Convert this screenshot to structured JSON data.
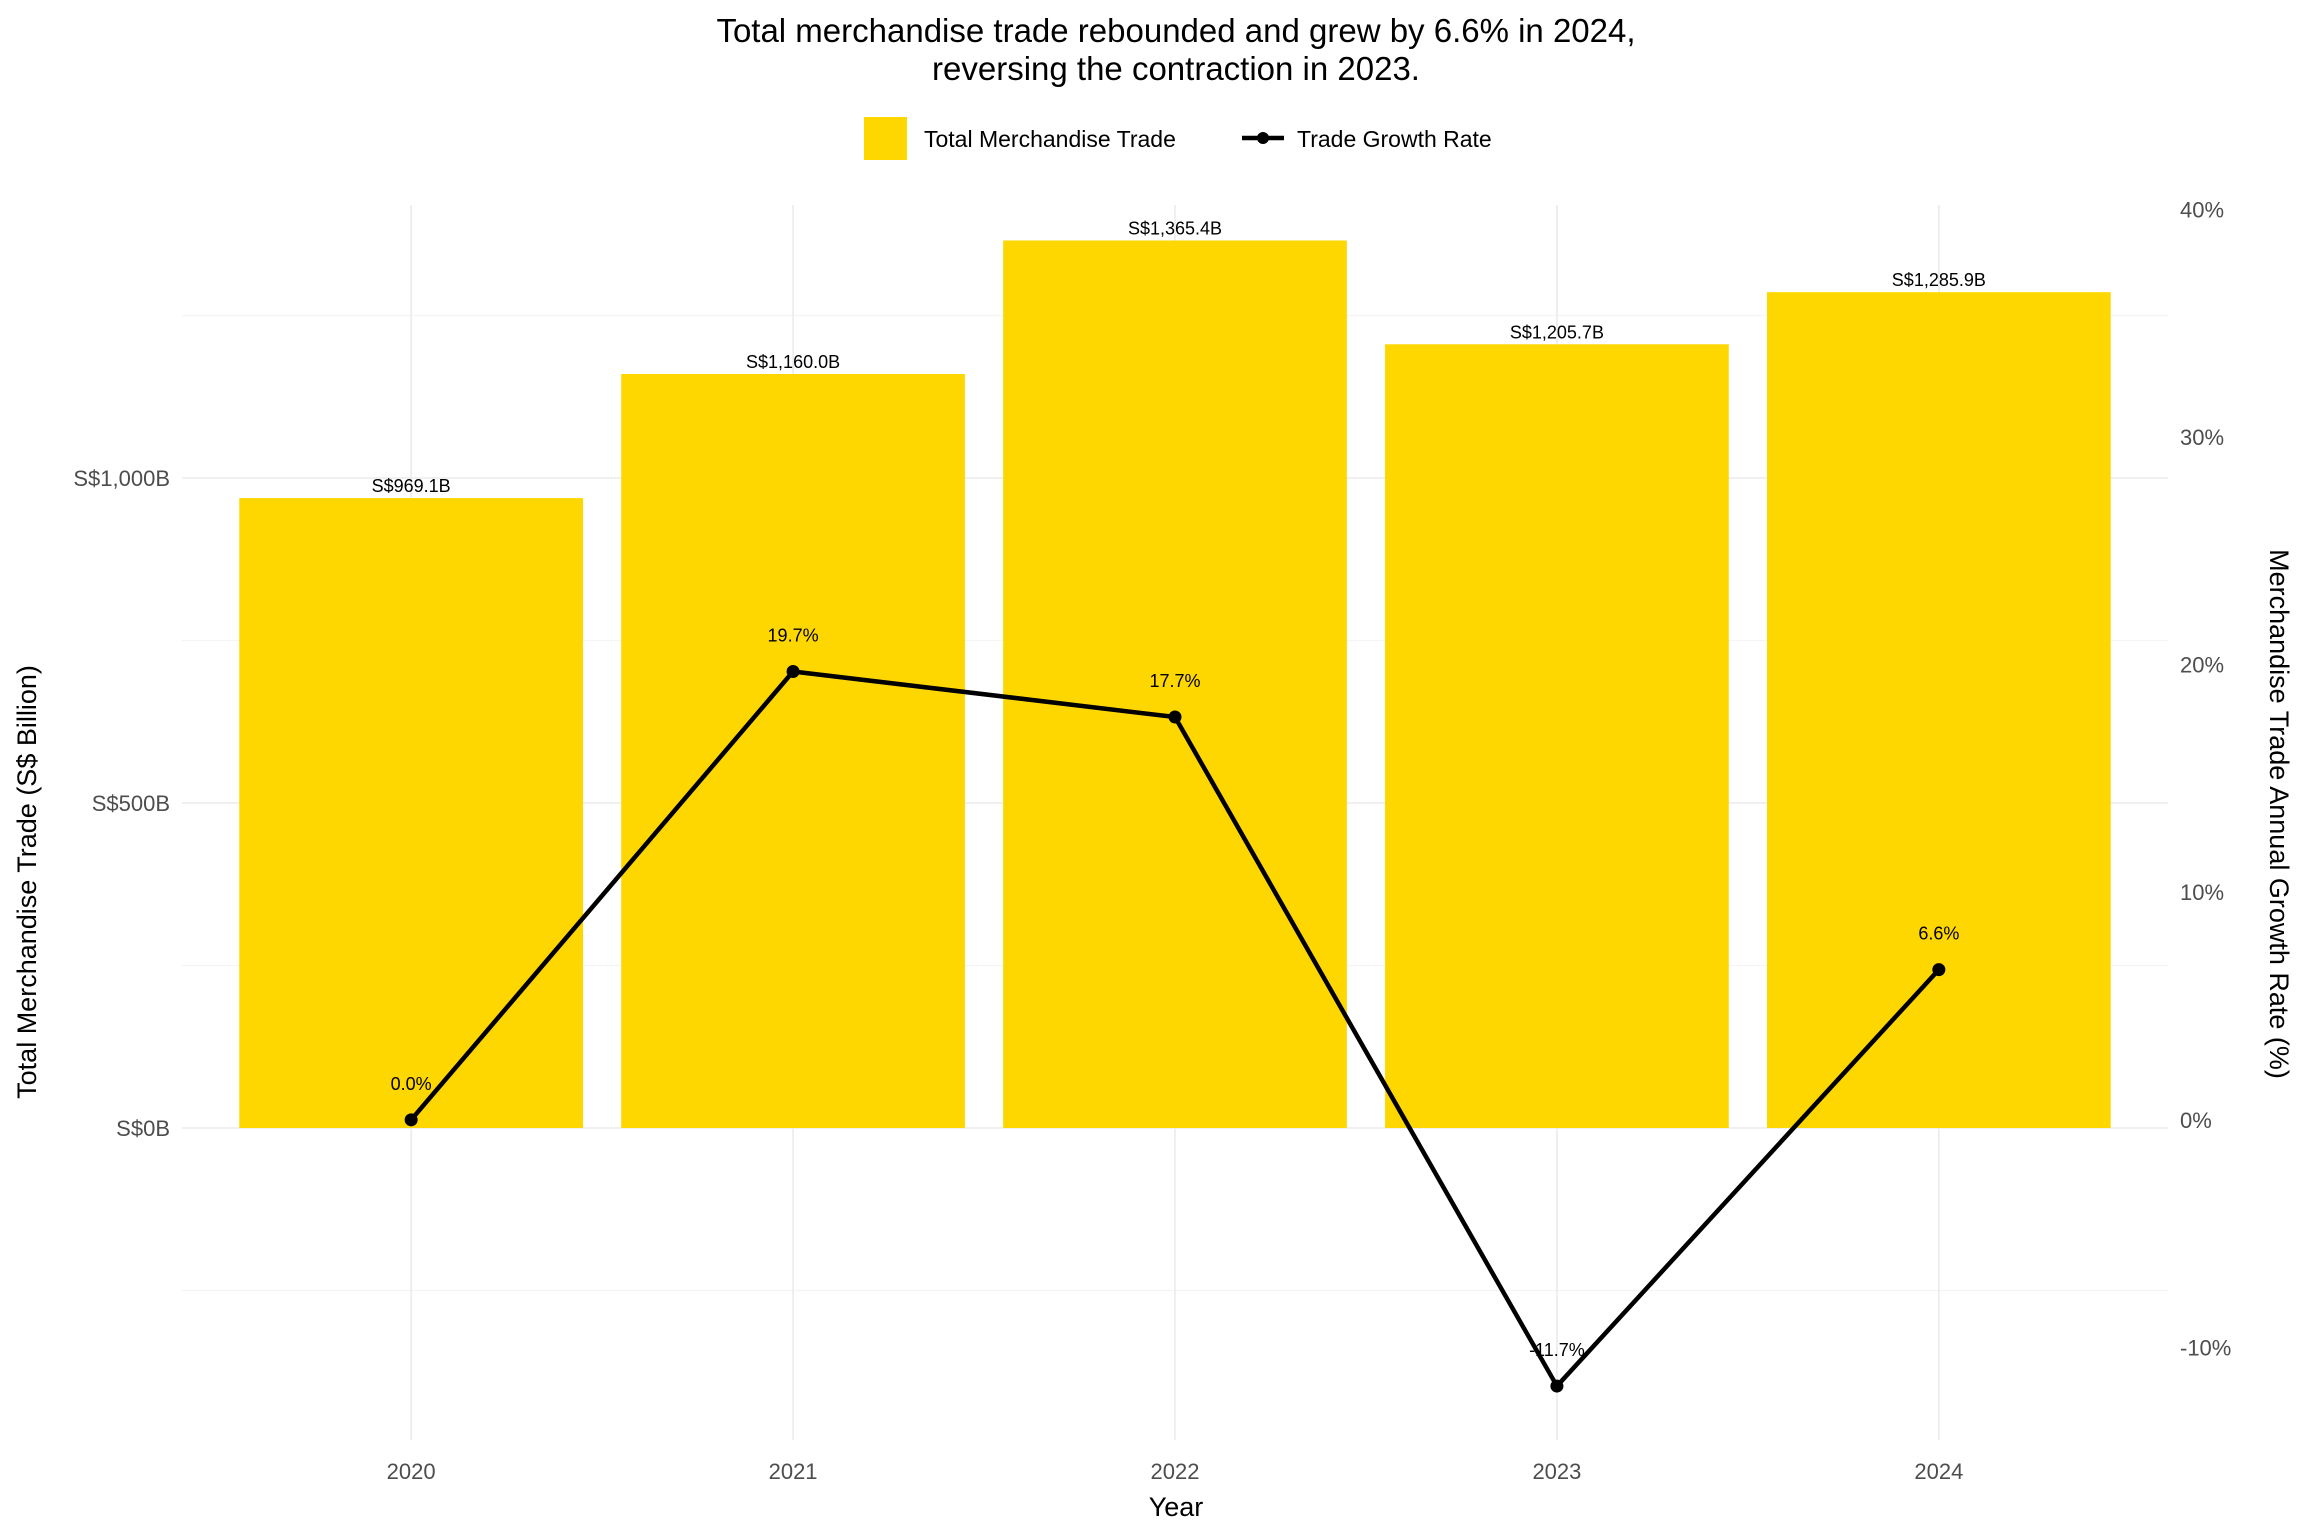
{
  "chart_data": {
    "type": "bar",
    "title_lines": [
      "Total merchandise trade rebounded and grew by 6.6% in 2024,",
      "reversing the contraction in 2023."
    ],
    "xlabel": "Year",
    "ylabel": "Total Merchandise Trade (S$ Billion)",
    "y2label": "Merchandise Trade Annual Growth Rate (%)",
    "categories": [
      "2020",
      "2021",
      "2022",
      "2023",
      "2024"
    ],
    "legend": {
      "position": "top",
      "entries": [
        "Total Merchandise Trade",
        "Trade Growth Rate"
      ]
    },
    "grid": true,
    "series": [
      {
        "name": "Total Merchandise Trade",
        "kind": "bar",
        "axis": "left",
        "color": "#FFD700",
        "values": [
          969.1,
          1160.0,
          1365.4,
          1205.7,
          1285.9
        ],
        "labels": [
          "S$969.1B",
          "S$1,160.0B",
          "S$1,365.4B",
          "S$1,205.7B",
          "S$1,285.9B"
        ]
      },
      {
        "name": "Trade Growth Rate",
        "kind": "line",
        "axis": "right",
        "color": "#000000",
        "values": [
          0.0,
          19.7,
          17.7,
          -11.7,
          6.6
        ],
        "labels": [
          "0.0%",
          "19.7%",
          "17.7%",
          "-11.7%",
          "6.6%"
        ]
      }
    ],
    "y_axis": {
      "ticks": [
        0,
        500,
        1000
      ],
      "tick_labels": [
        "S$0B",
        "S$500B",
        "S$1,000B"
      ],
      "ylim": [
        -480,
        1420
      ]
    },
    "y2_axis": {
      "ticks": [
        -10,
        0,
        10,
        20,
        30,
        40
      ],
      "tick_labels": [
        "-10%",
        "0%",
        "10%",
        "20%",
        "30%",
        "40%"
      ],
      "ylim": [
        -14.07,
        40.2
      ]
    }
  }
}
